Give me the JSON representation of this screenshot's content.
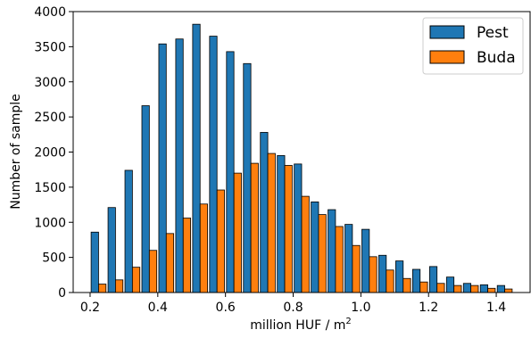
{
  "chart_data": {
    "type": "bar",
    "xlabel": "million HUF / m",
    "xlabel_superscript": "2",
    "ylabel": "Number of sample",
    "xlim": [
      0.15,
      1.5
    ],
    "ylim": [
      0,
      4000
    ],
    "x_ticks": [
      "0.2",
      "0.4",
      "0.6",
      "0.8",
      "1.0",
      "1.2",
      "1.4"
    ],
    "y_ticks": [
      "0",
      "500",
      "1000",
      "1500",
      "2000",
      "2500",
      "3000",
      "3500",
      "4000"
    ],
    "legend_position": "top-right",
    "grid": false,
    "bin_centers": [
      0.225,
      0.275,
      0.325,
      0.375,
      0.425,
      0.475,
      0.525,
      0.575,
      0.625,
      0.675,
      0.725,
      0.775,
      0.825,
      0.875,
      0.925,
      0.975,
      1.025,
      1.075,
      1.125,
      1.175,
      1.225,
      1.275,
      1.325,
      1.375,
      1.425
    ],
    "series": [
      {
        "name": "Pest",
        "color": "#1f77b4",
        "values": [
          860,
          1210,
          1740,
          2660,
          3540,
          3610,
          3820,
          3650,
          3430,
          3260,
          2280,
          1950,
          1830,
          1290,
          1180,
          970,
          900,
          530,
          450,
          330,
          370,
          220,
          130,
          110,
          100
        ]
      },
      {
        "name": "Buda",
        "color": "#ff7f0e",
        "values": [
          120,
          180,
          360,
          600,
          840,
          1060,
          1260,
          1460,
          1700,
          1840,
          1980,
          1810,
          1370,
          1110,
          940,
          670,
          510,
          320,
          200,
          150,
          130,
          100,
          100,
          60,
          50
        ]
      }
    ]
  }
}
